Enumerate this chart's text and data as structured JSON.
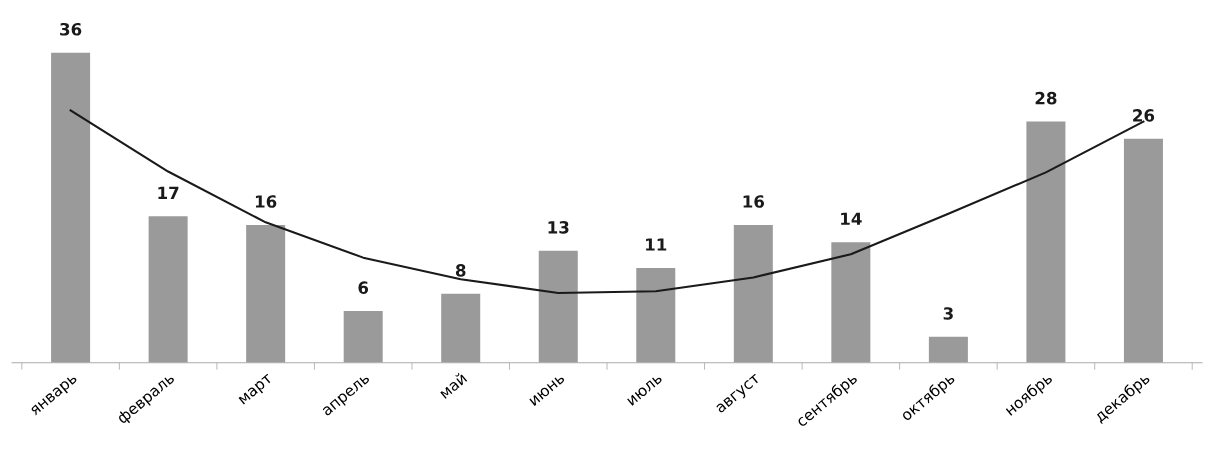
{
  "chart_data": {
    "type": "bar",
    "categories": [
      "январь",
      "февраль",
      "март",
      "апрель",
      "май",
      "июнь",
      "июль",
      "август",
      "сентябрь",
      "октябрь",
      "ноябрь",
      "декабрь"
    ],
    "series": [
      {
        "color": "#9a9a9a",
        "values": [
          36,
          17,
          16,
          6,
          8,
          13,
          11,
          16,
          14,
          3,
          28,
          26
        ],
        "value_labels": [
          "36",
          "17",
          "16",
          "6",
          "8",
          "13",
          "11",
          "16",
          "14",
          "3",
          "28",
          "26"
        ]
      },
      {
        "type": "line",
        "color": "#1a1a1a",
        "values": [
          29.3,
          22.2,
          16.3,
          12.2,
          9.7,
          8.1,
          8.3,
          9.9,
          12.6,
          17.3,
          22.1,
          28.0
        ]
      }
    ],
    "tick_labels": "x",
    "legend": false,
    "marker": "none",
    "line_style": "solid"
  }
}
